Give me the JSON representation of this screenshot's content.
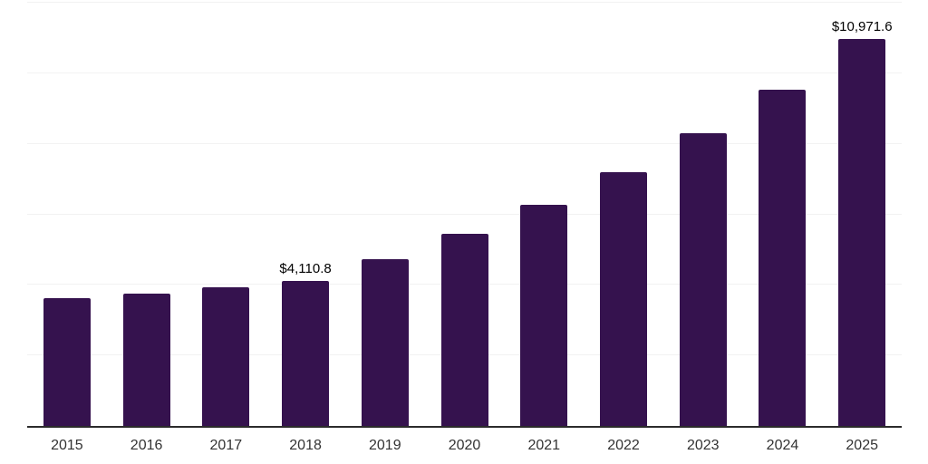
{
  "chart_data": {
    "type": "bar",
    "title": "",
    "xlabel": "",
    "ylabel": "",
    "categories": [
      "2015",
      "2016",
      "2017",
      "2018",
      "2019",
      "2020",
      "2021",
      "2022",
      "2023",
      "2024",
      "2025"
    ],
    "values": [
      3620,
      3755,
      3935,
      4110.8,
      4730,
      5440,
      6260,
      7200,
      8290,
      9530,
      10971.6
    ],
    "annotations": [
      {
        "category_index": 3,
        "text": "$4,110.8"
      },
      {
        "category_index": 10,
        "text": "$10,971.6"
      }
    ],
    "ylim": [
      0,
      12000
    ],
    "gridline_step": 2000,
    "grid": "horizontal-only",
    "legend": "none",
    "y_axis_tick_labels": "none",
    "colors": {
      "bar": "#35124E",
      "axis_line": "#2B2B2B",
      "gridline": "#F2F2F2",
      "annotation_text": "#000000",
      "tick_text": "#333333",
      "background": "#FFFFFF"
    }
  }
}
